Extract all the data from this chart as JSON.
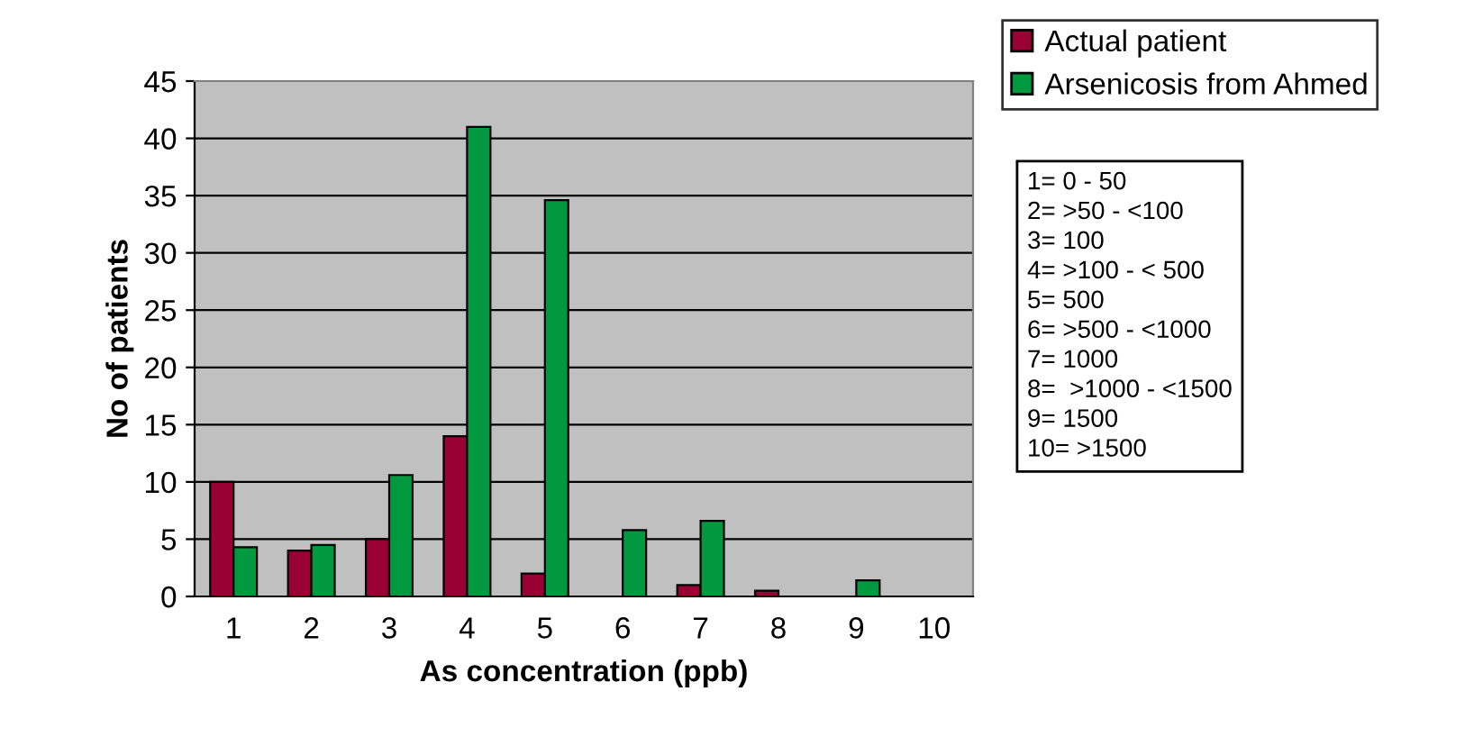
{
  "chart_data": {
    "type": "bar",
    "xlabel": "As concentration (ppb)",
    "ylabel": "No of patients",
    "categories": [
      "1",
      "2",
      "3",
      "4",
      "5",
      "6",
      "7",
      "8",
      "9",
      "10"
    ],
    "series": [
      {
        "name": "Actual patient",
        "color": "#990033",
        "values": [
          10,
          4,
          5,
          14,
          2,
          null,
          1,
          0.5,
          null,
          null
        ]
      },
      {
        "name": "Arsenicosis from Ahmed",
        "color": "#009940",
        "values": [
          4.3,
          4.5,
          10.6,
          41,
          34.6,
          5.8,
          6.6,
          null,
          1.4,
          null
        ]
      }
    ],
    "ylim": [
      0,
      45
    ],
    "yticks": [
      0,
      5,
      10,
      15,
      20,
      25,
      30,
      35,
      40,
      45
    ],
    "grid": "y",
    "legend": "top right",
    "annotations": [
      "1= 0 - 50",
      "2= >50 - <100",
      "3= 100",
      "4= >100 - < 500",
      "5= 500",
      "6= >500 - <1000",
      "7= 1000",
      "8=  >1000 - <1500",
      "9= 1500",
      "10= >1500"
    ]
  }
}
